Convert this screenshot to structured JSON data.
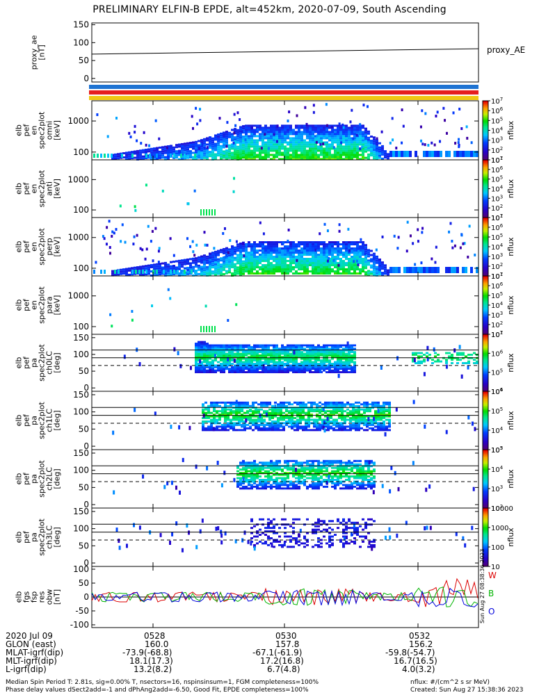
{
  "title": "PRELIMINARY ELFIN-B EPDE, alt=452km, 2020-07-09, South Ascending",
  "chart_data": [
    {
      "type": "line",
      "panel": "proxy_ae",
      "ylabel": [
        "proxy_ae",
        "[nT]"
      ],
      "legend": "proxy_AE",
      "ylim": [
        -10,
        155
      ],
      "yticks": [
        "150",
        "100",
        "50",
        "0"
      ],
      "series": [
        {
          "name": "proxy_AE",
          "x": [
            0,
            1
          ],
          "values": [
            68,
            83
          ]
        }
      ]
    },
    {
      "type": "bars",
      "panel": "state-bars",
      "colors": [
        "#1e73d2",
        "#e61e1e",
        "#f0c814"
      ]
    },
    {
      "type": "heatmap",
      "panel": "pef_en_spec2plot_omni",
      "ylabel": [
        "elb",
        "pef",
        "en",
        "spec2plot",
        "omni",
        "[keV]"
      ],
      "yscale": "log",
      "yticks": [
        "1000",
        "100"
      ],
      "zlabel": "nflux",
      "zticks": [
        "10",
        "10",
        "10",
        "10",
        "10",
        "10",
        "10"
      ],
      "zexps": [
        "7",
        "6",
        "5",
        "4",
        "3",
        "2",
        "1"
      ]
    },
    {
      "type": "heatmap",
      "panel": "pef_en_spec2plot_anti",
      "ylabel": [
        "elb",
        "pef",
        "en",
        "spec2plot",
        "anti",
        "[keV]"
      ],
      "yscale": "log",
      "yticks": [
        "1000",
        "100"
      ],
      "zlabel": "nflux",
      "zticks": [
        "10",
        "10",
        "10",
        "10",
        "10",
        "10",
        "10"
      ],
      "zexps": [
        "7",
        "6",
        "5",
        "4",
        "3",
        "2",
        "1"
      ]
    },
    {
      "type": "heatmap",
      "panel": "pef_en_spec2plot_perp",
      "ylabel": [
        "elb",
        "pef",
        "en",
        "spec2plot",
        "perp",
        "[keV]"
      ],
      "yscale": "log",
      "yticks": [
        "1000",
        "100"
      ],
      "zlabel": "nflux",
      "zticks": [
        "10",
        "10",
        "10",
        "10",
        "10",
        "10",
        "10"
      ],
      "zexps": [
        "7",
        "6",
        "5",
        "4",
        "3",
        "2",
        "1"
      ]
    },
    {
      "type": "heatmap",
      "panel": "pef_en_spec2plot_para",
      "ylabel": [
        "elb",
        "pef",
        "en",
        "spec2plot",
        "para",
        "[keV]"
      ],
      "yscale": "log",
      "yticks": [
        "1000",
        "100"
      ],
      "zlabel": "nflux",
      "zticks": [
        "10",
        "10",
        "10",
        "10",
        "10",
        "10",
        "10"
      ],
      "zexps": [
        "7",
        "6",
        "5",
        "4",
        "3",
        "2",
        "1"
      ]
    },
    {
      "type": "heatmap",
      "panel": "pef_pa_spec2plot_ch0LC",
      "ylabel": [
        "elb",
        "pef",
        "pa",
        "spec2plot",
        "ch0LC",
        "[deg]"
      ],
      "yticks": [
        "150",
        "100",
        "50",
        "0"
      ],
      "zlabel": "nflux",
      "zticks": [
        "10",
        "10",
        "10",
        "10"
      ],
      "zexps": [
        "7",
        "6",
        "5",
        "4"
      ]
    },
    {
      "type": "heatmap",
      "panel": "pef_pa_spec2plot_ch1LC",
      "ylabel": [
        "elb",
        "pef",
        "pa",
        "spec2plot",
        "ch1LC",
        "[deg]"
      ],
      "yticks": [
        "150",
        "100",
        "50",
        "0"
      ],
      "zlabel": "nflux",
      "zticks": [
        "10",
        "10",
        "10",
        "10"
      ],
      "zexps": [
        "6",
        "5",
        "4",
        "3"
      ]
    },
    {
      "type": "heatmap",
      "panel": "pef_pa_spec2plot_ch2LC",
      "ylabel": [
        "elb",
        "pef",
        "pa",
        "spec2plot",
        "ch2LC",
        "[deg]"
      ],
      "yticks": [
        "150",
        "100",
        "50",
        "0"
      ],
      "zlabel": "nflux",
      "zticks": [
        "10",
        "10",
        "10",
        "10"
      ],
      "zexps": [
        "5",
        "4",
        "3",
        "2"
      ]
    },
    {
      "type": "heatmap",
      "panel": "pef_pa_spec2plot_ch3LC",
      "ylabel": [
        "elb",
        "pef",
        "pa",
        "spec2plot",
        "ch3LC",
        "[deg]"
      ],
      "yticks": [
        "150",
        "100",
        "50",
        "0"
      ],
      "zlabel": "nflux",
      "zticks": [
        "10000",
        "1000",
        "100",
        "10"
      ]
    },
    {
      "type": "line",
      "panel": "fgs_fsp_res_obw",
      "ylabel": [
        "elb",
        "fgs",
        "fsp",
        "res",
        "obw",
        "[nT]"
      ],
      "ylim": [
        -110,
        110
      ],
      "yticks": [
        "100",
        "50",
        "0",
        "-50",
        "-100"
      ],
      "legend": [
        "W",
        "B",
        "O"
      ],
      "legend_colors": [
        "#dc0000",
        "#00b400",
        "#0000dc"
      ],
      "stamp": "Sun Aug 27 08:38:36 2023"
    }
  ],
  "time_axis": {
    "labels": [
      "0528",
      "0530",
      "0532"
    ]
  },
  "ephemeris": {
    "rows": [
      {
        "name": "2020 Jul 09",
        "values": [
          "",
          "",
          ""
        ]
      },
      {
        "name": "GLON (east)",
        "values": [
          "160.0",
          "157.8",
          "156.2"
        ]
      },
      {
        "name": "MLAT-igrf(dip)",
        "values": [
          "-73.9(-68.8)",
          "-67.1(-61.9)",
          "-59.8(-54.7)"
        ]
      },
      {
        "name": "MLT-igrf(dip)",
        "values": [
          "18.1(17.3)",
          "17.2(16.8)",
          "16.7(16.5)"
        ]
      },
      {
        "name": "L-igrf(dip)",
        "values": [
          "13.2(8.2)",
          "6.7(4.8)",
          "4.0(3.2)"
        ]
      }
    ]
  },
  "footer": {
    "left_line1": "Median Spin Period T: 2.81s, sig=0.00% T, nsectors=16, nspinsinsum=1, FGM completeness=100%",
    "left_line2": "Phase delay values dSect2add=-1 and dPhAng2add=-6.50, Good Fit, EPDE completeness=100%",
    "right_line1": "nflux: #/(cm^2 s sr MeV)",
    "right_line2": "Created: Sun Aug 27 15:38:36 2023"
  }
}
